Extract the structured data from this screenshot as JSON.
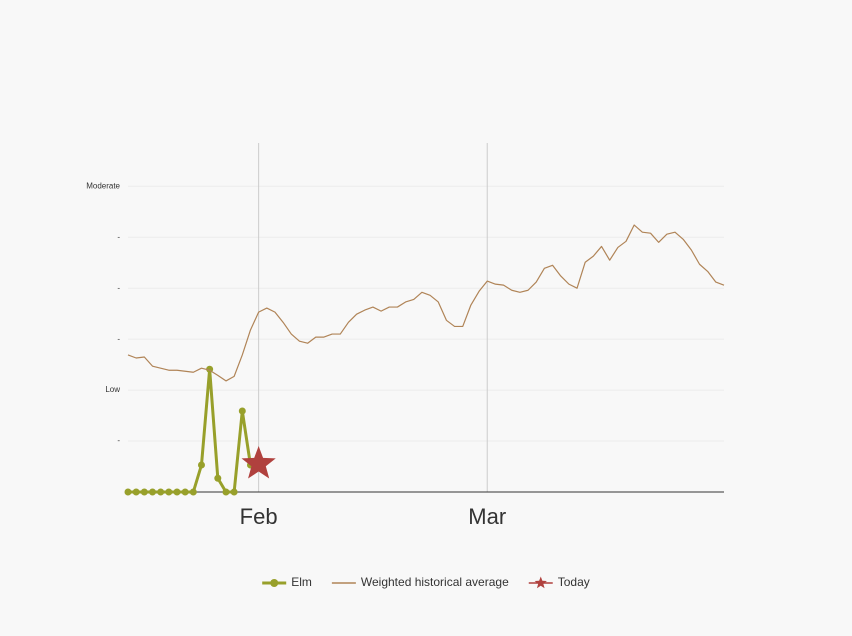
{
  "chart_data": {
    "type": "line",
    "xlim": [
      0,
      73
    ],
    "xticks": [
      {
        "value": 16,
        "label": "Feb"
      },
      {
        "value": 44,
        "label": "Mar"
      }
    ],
    "ylim": [
      0,
      6.85
    ],
    "yticks": [
      {
        "value": 1,
        "label": "-"
      },
      {
        "value": 2,
        "label": "Low"
      },
      {
        "value": 3,
        "label": "-"
      },
      {
        "value": 4,
        "label": "-"
      },
      {
        "value": 5,
        "label": "-"
      },
      {
        "value": 6,
        "label": "Moderate"
      }
    ],
    "grid": true,
    "legend": "bottom",
    "series": [
      {
        "name": "Elm",
        "color": "#98a02b",
        "marker": "circle",
        "x": [
          0,
          1,
          2,
          3,
          4,
          5,
          6,
          7,
          8,
          9,
          10,
          11,
          12,
          13,
          14,
          15
        ],
        "values": [
          0,
          0,
          0,
          0,
          0,
          0,
          0,
          0,
          0,
          0.53,
          2.41,
          0.27,
          0,
          0,
          1.59,
          0.53
        ]
      },
      {
        "name": "Weighted historical average",
        "color": "#b08457",
        "marker": "none",
        "x": [
          0,
          1,
          2,
          3,
          4,
          5,
          6,
          7,
          8,
          9,
          10,
          11,
          12,
          13,
          14,
          15,
          16,
          17,
          18,
          19,
          20,
          21,
          22,
          23,
          24,
          25,
          26,
          27,
          28,
          29,
          30,
          31,
          32,
          33,
          34,
          35,
          36,
          37,
          38,
          39,
          40,
          41,
          42,
          43,
          44,
          45,
          46,
          47,
          48,
          49,
          50,
          51,
          52,
          53,
          54,
          55,
          56,
          57,
          58,
          59,
          60,
          61,
          62,
          63,
          64,
          65,
          66,
          67,
          68,
          69,
          70,
          71,
          72,
          73
        ],
        "values": [
          2.69,
          2.63,
          2.65,
          2.47,
          2.43,
          2.39,
          2.39,
          2.37,
          2.35,
          2.43,
          2.39,
          2.29,
          2.18,
          2.27,
          2.69,
          3.18,
          3.53,
          3.61,
          3.53,
          3.33,
          3.1,
          2.96,
          2.92,
          3.04,
          3.04,
          3.1,
          3.1,
          3.33,
          3.49,
          3.57,
          3.63,
          3.55,
          3.63,
          3.63,
          3.73,
          3.78,
          3.92,
          3.86,
          3.73,
          3.37,
          3.25,
          3.25,
          3.67,
          3.94,
          4.14,
          4.08,
          4.06,
          3.96,
          3.92,
          3.96,
          4.12,
          4.39,
          4.45,
          4.24,
          4.08,
          4.0,
          4.51,
          4.63,
          4.82,
          4.55,
          4.8,
          4.92,
          5.24,
          5.1,
          5.08,
          4.9,
          5.06,
          5.1,
          4.96,
          4.75,
          4.47,
          4.33,
          4.12,
          4.06
        ]
      },
      {
        "name": "Today",
        "color": "#b0413e",
        "marker": "star",
        "x": [
          16
        ],
        "values": [
          0.55
        ]
      }
    ]
  }
}
